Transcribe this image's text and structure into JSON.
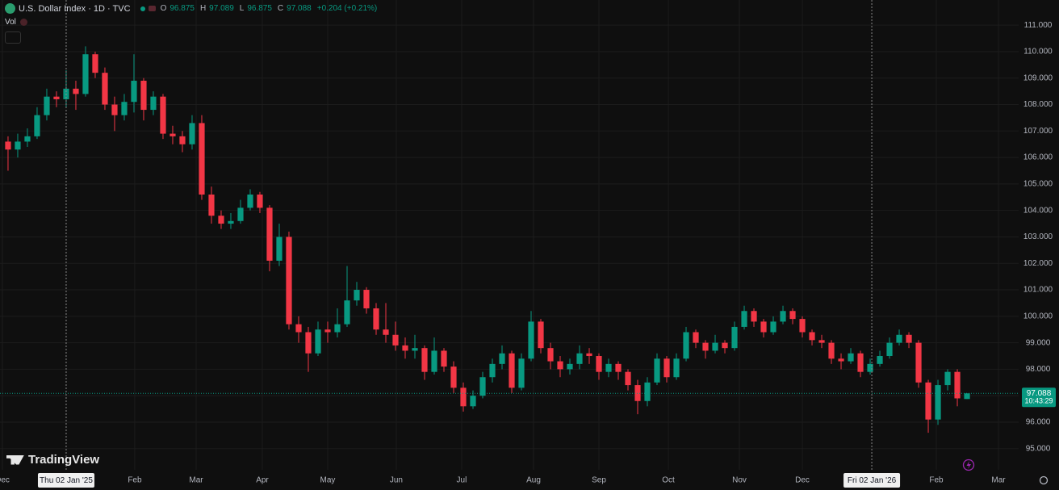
{
  "chart_data": {
    "type": "candlestick",
    "title": "U.S. Dollar Index · 1D · TVC",
    "ohlc_labels": [
      "O",
      "H",
      "L",
      "C"
    ],
    "change": "+0.204 (+0.21%)",
    "indicator": "Vol",
    "watermark": "TradingView",
    "countdown": "10:43:29",
    "up_color": "#089981",
    "down_color": "#f23645",
    "grid": true,
    "ylim": [
      94.2,
      111.95
    ],
    "yticks": [
      {
        "value": 95,
        "label": "95.000"
      },
      {
        "value": 96,
        "label": "96.000"
      },
      {
        "value": 97,
        "label": "97.000"
      },
      {
        "value": 98,
        "label": "98.000"
      },
      {
        "value": 99,
        "label": "99.000"
      },
      {
        "value": 100,
        "label": "100.000"
      },
      {
        "value": 101,
        "label": "101.000"
      },
      {
        "value": 102,
        "label": "102.000"
      },
      {
        "value": 103,
        "label": "103.000"
      },
      {
        "value": 104,
        "label": "104.000"
      },
      {
        "value": 105,
        "label": "105.000"
      },
      {
        "value": 106,
        "label": "106.000"
      },
      {
        "value": 107,
        "label": "107.000"
      },
      {
        "value": 108,
        "label": "108.000"
      },
      {
        "value": 109,
        "label": "109.000"
      },
      {
        "value": 110,
        "label": "110.000"
      },
      {
        "value": 111,
        "label": "111.000"
      }
    ],
    "xlim": [
      -0.83,
      104.33
    ],
    "xticks": [
      {
        "value": -0.58,
        "label": "Dec"
      },
      {
        "value": 13.08,
        "label": "Feb"
      },
      {
        "value": 19.42,
        "label": "Mar"
      },
      {
        "value": 26.25,
        "label": "Apr"
      },
      {
        "value": 33,
        "label": "May"
      },
      {
        "value": 40.08,
        "label": "Jun"
      },
      {
        "value": 46.83,
        "label": "Jul"
      },
      {
        "value": 54.25,
        "label": "Aug"
      },
      {
        "value": 61,
        "label": "Sep"
      },
      {
        "value": 68.17,
        "label": "Oct"
      },
      {
        "value": 75.5,
        "label": "Nov"
      },
      {
        "value": 82,
        "label": "Dec"
      },
      {
        "value": 95.83,
        "label": "Feb"
      },
      {
        "value": 102.25,
        "label": "Mar"
      }
    ],
    "crosshairs": [
      {
        "value": 6,
        "label": "Thu 02 Jan '25"
      },
      {
        "value": 89.17,
        "label": "Fri 02 Jan '26"
      }
    ],
    "candles": [
      [
        106.6,
        106.8,
        105.5,
        106.3
      ],
      [
        106.3,
        106.9,
        106.0,
        106.6
      ],
      [
        106.6,
        107.1,
        106.4,
        106.8
      ],
      [
        106.8,
        107.9,
        106.7,
        107.6
      ],
      [
        107.6,
        108.6,
        107.4,
        108.3
      ],
      [
        108.3,
        108.5,
        107.9,
        108.2
      ],
      [
        108.2,
        109.3,
        107.9,
        108.6
      ],
      [
        108.6,
        108.9,
        107.8,
        108.4
      ],
      [
        108.4,
        110.2,
        108.3,
        109.9
      ],
      [
        109.9,
        110.0,
        109.0,
        109.2
      ],
      [
        109.2,
        109.4,
        107.8,
        108.0
      ],
      [
        108.0,
        108.3,
        107.0,
        107.6
      ],
      [
        107.6,
        108.4,
        107.4,
        108.1
      ],
      [
        108.1,
        109.9,
        107.7,
        108.9
      ],
      [
        108.9,
        109.0,
        107.4,
        107.8
      ],
      [
        107.8,
        108.5,
        107.6,
        108.3
      ],
      [
        108.3,
        108.4,
        106.7,
        106.9
      ],
      [
        106.9,
        107.2,
        106.5,
        106.8
      ],
      [
        106.8,
        107.0,
        106.2,
        106.5
      ],
      [
        106.5,
        107.6,
        106.3,
        107.3
      ],
      [
        107.3,
        107.6,
        104.4,
        104.6
      ],
      [
        104.6,
        104.9,
        103.5,
        103.8
      ],
      [
        103.8,
        104.0,
        103.3,
        103.5
      ],
      [
        103.5,
        103.9,
        103.3,
        103.6
      ],
      [
        103.6,
        104.4,
        103.5,
        104.1
      ],
      [
        104.1,
        104.8,
        104.0,
        104.6
      ],
      [
        104.6,
        104.7,
        103.9,
        104.1
      ],
      [
        104.1,
        104.2,
        101.7,
        102.1
      ],
      [
        102.1,
        103.5,
        101.9,
        103.0
      ],
      [
        103.0,
        103.2,
        99.5,
        99.7
      ],
      [
        99.7,
        100.0,
        99.0,
        99.4
      ],
      [
        99.4,
        99.6,
        97.9,
        98.6
      ],
      [
        98.6,
        99.8,
        98.5,
        99.5
      ],
      [
        99.5,
        99.8,
        99.0,
        99.4
      ],
      [
        99.4,
        100.3,
        99.2,
        99.7
      ],
      [
        99.7,
        101.9,
        99.6,
        100.6
      ],
      [
        100.6,
        101.3,
        100.4,
        101.0
      ],
      [
        101.0,
        101.1,
        100.1,
        100.3
      ],
      [
        100.3,
        100.5,
        99.3,
        99.5
      ],
      [
        99.5,
        100.5,
        99.0,
        99.3
      ],
      [
        99.3,
        99.8,
        98.7,
        98.9
      ],
      [
        98.9,
        99.2,
        98.4,
        98.7
      ],
      [
        98.7,
        99.3,
        98.4,
        98.8
      ],
      [
        98.8,
        98.9,
        97.6,
        97.9
      ],
      [
        97.9,
        99.2,
        97.8,
        98.7
      ],
      [
        98.7,
        98.8,
        97.9,
        98.1
      ],
      [
        98.1,
        98.3,
        97.1,
        97.3
      ],
      [
        97.3,
        97.5,
        96.4,
        96.6
      ],
      [
        96.6,
        97.2,
        96.5,
        97.0
      ],
      [
        97.0,
        97.9,
        96.9,
        97.7
      ],
      [
        97.7,
        98.4,
        97.5,
        98.2
      ],
      [
        98.2,
        98.9,
        98.0,
        98.6
      ],
      [
        98.6,
        98.7,
        97.1,
        97.3
      ],
      [
        97.3,
        98.6,
        97.2,
        98.4
      ],
      [
        98.4,
        100.2,
        98.3,
        99.8
      ],
      [
        99.8,
        99.9,
        98.6,
        98.8
      ],
      [
        98.8,
        99.0,
        98.0,
        98.3
      ],
      [
        98.3,
        98.5,
        97.7,
        98.0
      ],
      [
        98.0,
        98.4,
        97.8,
        98.2
      ],
      [
        98.2,
        98.9,
        98.0,
        98.6
      ],
      [
        98.6,
        98.8,
        98.2,
        98.5
      ],
      [
        98.5,
        98.6,
        97.6,
        97.9
      ],
      [
        97.9,
        98.4,
        97.7,
        98.2
      ],
      [
        98.2,
        98.3,
        97.6,
        97.9
      ],
      [
        97.9,
        98.0,
        97.2,
        97.4
      ],
      [
        97.4,
        97.6,
        96.3,
        96.8
      ],
      [
        96.8,
        97.7,
        96.6,
        97.5
      ],
      [
        97.5,
        98.6,
        97.4,
        98.4
      ],
      [
        98.4,
        98.5,
        97.5,
        97.7
      ],
      [
        97.7,
        98.6,
        97.6,
        98.4
      ],
      [
        98.4,
        99.6,
        98.3,
        99.4
      ],
      [
        99.4,
        99.5,
        98.8,
        99.0
      ],
      [
        99.0,
        99.1,
        98.4,
        98.7
      ],
      [
        98.7,
        99.3,
        98.6,
        99.0
      ],
      [
        99.0,
        99.1,
        98.6,
        98.8
      ],
      [
        98.8,
        99.8,
        98.7,
        99.6
      ],
      [
        99.6,
        100.4,
        99.5,
        100.2
      ],
      [
        100.2,
        100.3,
        99.6,
        99.8
      ],
      [
        99.8,
        99.9,
        99.2,
        99.4
      ],
      [
        99.4,
        100.0,
        99.3,
        99.8
      ],
      [
        99.8,
        100.4,
        99.7,
        100.2
      ],
      [
        100.2,
        100.3,
        99.7,
        99.9
      ],
      [
        99.9,
        100.0,
        99.2,
        99.4
      ],
      [
        99.4,
        99.5,
        98.9,
        99.1
      ],
      [
        99.1,
        99.3,
        98.8,
        99.0
      ],
      [
        99.0,
        99.1,
        98.2,
        98.4
      ],
      [
        98.4,
        98.6,
        98.0,
        98.3
      ],
      [
        98.3,
        98.8,
        98.2,
        98.6
      ],
      [
        98.6,
        98.7,
        97.7,
        97.9
      ],
      [
        97.9,
        98.4,
        97.8,
        98.2
      ],
      [
        98.2,
        98.7,
        98.1,
        98.5
      ],
      [
        98.5,
        99.2,
        98.4,
        99.0
      ],
      [
        99.0,
        99.5,
        98.9,
        99.3
      ],
      [
        99.3,
        99.4,
        98.8,
        99.0
      ],
      [
        99.0,
        99.1,
        97.3,
        97.5
      ],
      [
        97.5,
        97.6,
        95.6,
        96.1
      ],
      [
        96.1,
        97.6,
        95.9,
        97.4
      ],
      [
        97.4,
        98.0,
        97.2,
        97.9
      ],
      [
        97.9,
        98.0,
        96.6,
        96.9
      ],
      [
        96.875,
        97.089,
        96.875,
        97.088
      ]
    ]
  }
}
